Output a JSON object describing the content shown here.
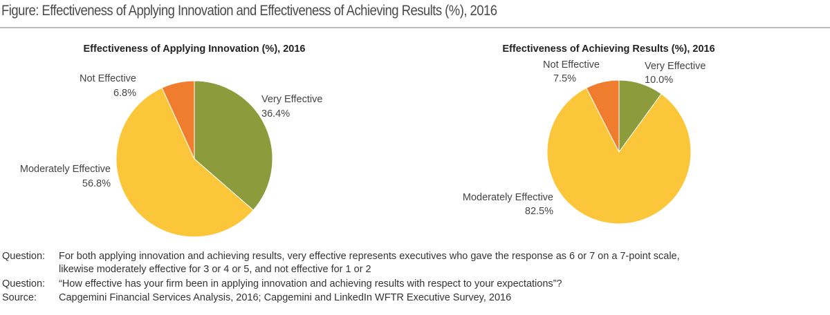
{
  "title": "Figure: Effectiveness of Applying Innovation and Effectiveness of Achieving Results (%), 2016",
  "colors": {
    "very": "#8c9b3c",
    "moderate": "#fbc63a",
    "not": "#ef7d2d"
  },
  "chart_data": [
    {
      "type": "pie",
      "title": "Effectiveness of Applying Innovation (%), 2016",
      "slices": [
        {
          "label": "Very Effective",
          "value": 36.4,
          "text": "36.4%"
        },
        {
          "label": "Moderately Effective",
          "value": 56.8,
          "text": "56.8%"
        },
        {
          "label": "Not Effective",
          "value": 6.8,
          "text": "6.8%"
        }
      ]
    },
    {
      "type": "pie",
      "title": "Effectiveness of Achieving Results (%), 2016",
      "slices": [
        {
          "label": "Very Effective",
          "value": 10.0,
          "text": "10.0%"
        },
        {
          "label": "Moderately Effective",
          "value": 82.5,
          "text": "82.5%"
        },
        {
          "label": "Not Effective",
          "value": 7.5,
          "text": "7.5%"
        }
      ]
    }
  ],
  "notes": [
    {
      "label": "Question:",
      "lines": [
        "For both applying innovation and achieving results, very effective represents executives who gave the response as 6 or 7 on a 7-point scale,",
        "likewise moderately effective for 3 or 4 or 5, and not effective for 1 or 2"
      ]
    },
    {
      "label": "Question:",
      "lines": [
        "“How effective has your firm been in applying innovation and achieving results with respect to your expectations”?"
      ]
    },
    {
      "label": "Source:",
      "lines": [
        "Capgemini Financial Services Analysis, 2016; Capgemini and LinkedIn WFTR Executive Survey, 2016"
      ]
    }
  ]
}
